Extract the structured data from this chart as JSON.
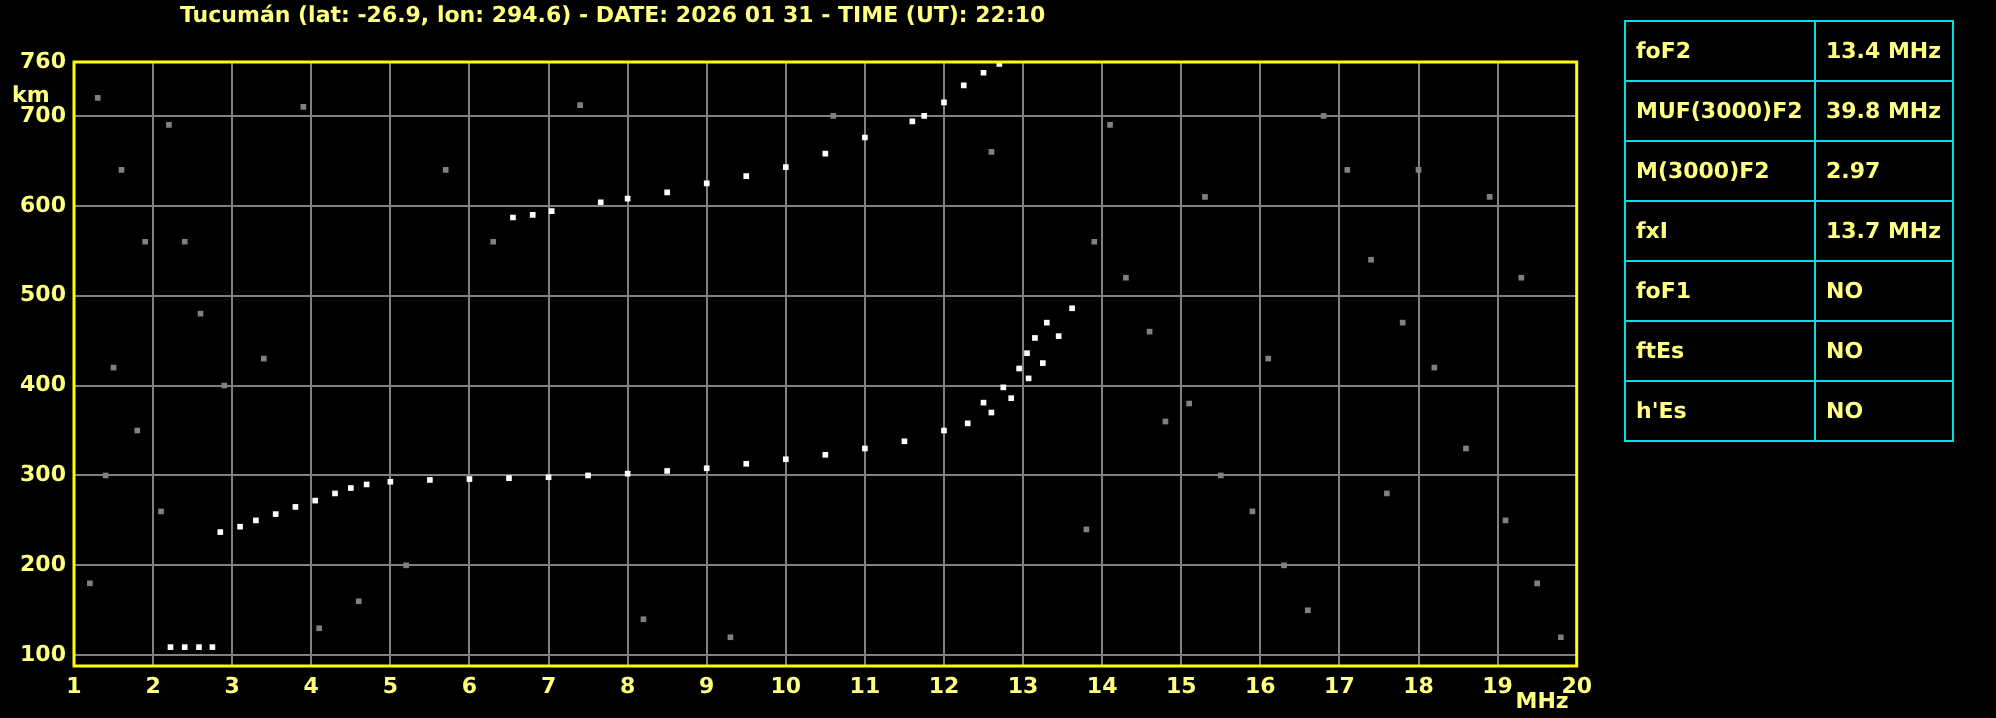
{
  "chart_data": {
    "type": "scatter",
    "title": "Tucumán (lat: -26.9, lon: 294.6) - DATE: 2026 01 31 - TIME (UT): 22:10",
    "xlabel": "MHz",
    "ylabel": "km",
    "xlim": [
      1,
      20
    ],
    "xticks": [
      1,
      2,
      3,
      4,
      5,
      6,
      7,
      8,
      9,
      10,
      11,
      12,
      13,
      14,
      15,
      16,
      17,
      18,
      19,
      20
    ],
    "ylim": [
      88,
      760
    ],
    "yticks": [
      100,
      200,
      300,
      400,
      500,
      600,
      700,
      760
    ],
    "grid": true,
    "legend": false,
    "marker": "square",
    "series": [
      {
        "color": "#ffffff",
        "x": [
          2.85,
          3.1,
          3.3,
          3.55,
          3.8,
          4.05,
          4.3,
          4.5,
          4.7,
          5.0,
          5.5,
          6.0,
          6.5,
          7.0,
          7.5,
          8.0,
          8.5,
          9.0,
          9.5,
          10.0,
          10.5,
          11.0,
          11.5,
          12.0,
          12.3,
          12.6,
          12.85,
          13.07,
          13.25,
          13.45,
          13.62
        ],
        "values": [
          237,
          243,
          250,
          257,
          265,
          272,
          280,
          286,
          290,
          293,
          295,
          296,
          297,
          298,
          300,
          302,
          305,
          308,
          313,
          318,
          323,
          330,
          338,
          350,
          358,
          370,
          386,
          408,
          425,
          455,
          486
        ]
      },
      {
        "color": "#ffffff",
        "x": [
          12.5,
          12.75,
          12.95,
          13.05,
          13.15,
          13.3
        ],
        "values": [
          381,
          398,
          419,
          436,
          453,
          470
        ]
      },
      {
        "color": "#ffffff",
        "x": [
          6.55,
          6.8,
          7.04,
          7.66,
          8.0,
          8.5,
          9.0,
          9.5,
          10.0,
          10.5,
          11.0,
          11.6,
          11.75,
          12.0,
          12.25,
          12.5,
          12.7
        ],
        "values": [
          587,
          590,
          594,
          604,
          608,
          615,
          625,
          633,
          643,
          658,
          676,
          694,
          700,
          715,
          734,
          748,
          758
        ]
      },
      {
        "color": "#ffffff",
        "x": [
          2.22,
          2.4,
          2.58,
          2.75
        ],
        "values": [
          109,
          109,
          109,
          109
        ]
      },
      {
        "color": "#808080",
        "x": [
          1.3,
          1.6,
          1.9,
          2.2,
          2.6,
          3.4,
          1.8,
          2.1,
          1.2,
          3.9,
          4.6,
          5.7,
          6.3,
          7.4,
          8.2,
          9.3,
          10.6,
          12.6,
          13.9,
          14.3,
          14.6,
          15.1,
          15.5,
          15.9,
          16.3,
          16.6,
          17.1,
          17.4,
          17.8,
          18.2,
          18.6,
          19.1,
          19.5,
          19.8,
          14.1,
          15.3,
          16.8,
          18.0,
          19.3,
          13.8,
          14.8,
          16.1,
          17.6,
          18.9,
          1.5,
          2.9,
          4.1,
          5.2,
          1.4,
          2.4
        ],
        "values": [
          720,
          640,
          560,
          690,
          480,
          430,
          350,
          260,
          180,
          710,
          160,
          640,
          560,
          712,
          140,
          120,
          700,
          660,
          560,
          520,
          460,
          380,
          300,
          260,
          200,
          150,
          640,
          540,
          470,
          420,
          330,
          250,
          180,
          120,
          690,
          610,
          700,
          640,
          520,
          240,
          360,
          430,
          280,
          610,
          420,
          400,
          130,
          200,
          300,
          560
        ]
      }
    ],
    "annotations": [
      "foF2",
      "13.4 MHz",
      "MUF(3000)F2",
      "39.8 MHz",
      "M(3000)F2",
      "2.97",
      "fxI",
      "13.7 MHz",
      "foF1",
      "NO",
      "ftEs",
      "NO",
      "h'Es",
      "NO"
    ]
  }
}
